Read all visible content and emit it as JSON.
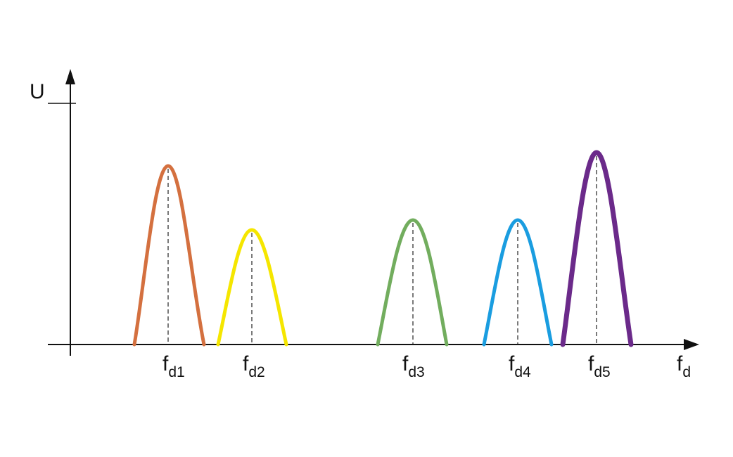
{
  "axes": {
    "y_label": "U",
    "x_label": {
      "base": "f",
      "sub": "d"
    }
  },
  "peaks": [
    {
      "label": {
        "base": "f",
        "sub": "d1"
      }
    },
    {
      "label": {
        "base": "f",
        "sub": "d2"
      }
    },
    {
      "label": {
        "base": "f",
        "sub": "d3"
      }
    },
    {
      "label": {
        "base": "f",
        "sub": "d4"
      }
    },
    {
      "label": {
        "base": "f",
        "sub": "d5"
      }
    }
  ]
}
